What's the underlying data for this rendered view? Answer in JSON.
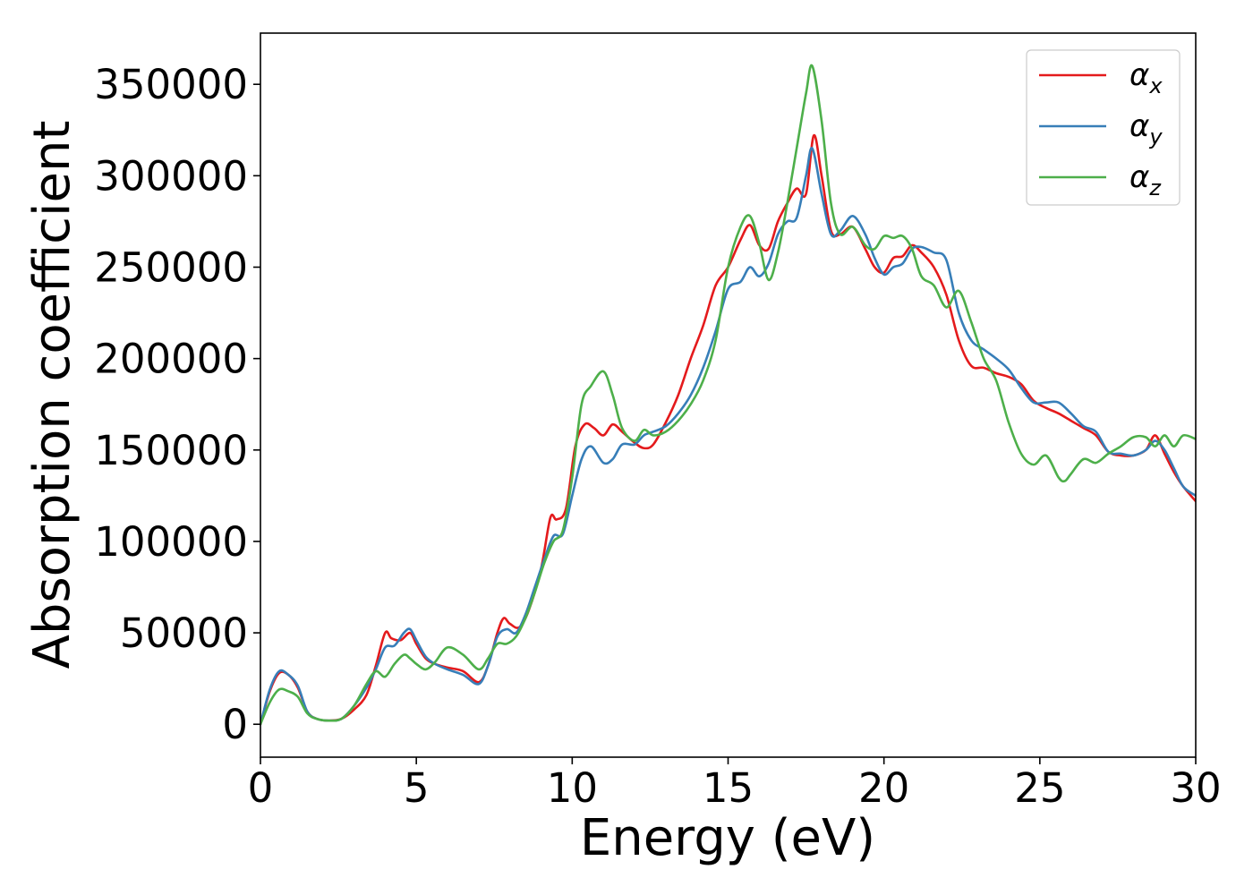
{
  "chart_data": {
    "type": "line",
    "title": "",
    "xlabel": "Energy (eV)",
    "ylabel": "Absorption coefficient",
    "xlim": [
      0,
      30
    ],
    "ylim": [
      -18000,
      378000
    ],
    "xticks": [
      0,
      5,
      10,
      15,
      20,
      25,
      30
    ],
    "yticks": [
      0,
      50000,
      100000,
      150000,
      200000,
      250000,
      300000,
      350000
    ],
    "grid": false,
    "legend_position": "top-right",
    "series": [
      {
        "name": "α_x",
        "legend_symbol": "α",
        "legend_sub": "x",
        "color": "#e41a1c",
        "x": [
          0,
          0.3,
          0.6,
          0.9,
          1.2,
          1.5,
          1.8,
          2.2,
          2.6,
          3.0,
          3.4,
          3.7,
          4.0,
          4.2,
          4.5,
          4.8,
          5.0,
          5.3,
          5.6,
          6.0,
          6.5,
          7.0,
          7.3,
          7.6,
          7.8,
          8.0,
          8.3,
          8.6,
          9.0,
          9.3,
          9.5,
          9.8,
          10.1,
          10.4,
          10.7,
          11.0,
          11.3,
          11.6,
          12.0,
          12.3,
          12.6,
          13.0,
          13.4,
          13.8,
          14.2,
          14.6,
          15.0,
          15.4,
          15.7,
          16.0,
          16.3,
          16.6,
          16.9,
          17.2,
          17.5,
          17.75,
          18.0,
          18.3,
          18.6,
          19.0,
          19.4,
          19.7,
          20.0,
          20.3,
          20.6,
          20.9,
          21.2,
          21.6,
          22.0,
          22.4,
          22.8,
          23.2,
          23.6,
          24.0,
          24.4,
          24.8,
          25.2,
          25.6,
          26.0,
          26.4,
          26.8,
          27.2,
          27.6,
          28.0,
          28.4,
          28.7,
          29.0,
          29.3,
          29.6,
          30.0
        ],
        "y": [
          0,
          18000,
          28000,
          27000,
          20000,
          7000,
          3000,
          2000,
          3000,
          8000,
          16000,
          32000,
          50000,
          47000,
          46000,
          50000,
          44000,
          36000,
          33000,
          31000,
          29000,
          23000,
          32000,
          50000,
          58000,
          55000,
          53000,
          62000,
          85000,
          113000,
          112000,
          118000,
          152000,
          164000,
          162000,
          158000,
          164000,
          160000,
          154000,
          151000,
          153000,
          165000,
          180000,
          200000,
          218000,
          240000,
          250000,
          265000,
          273000,
          262000,
          260000,
          275000,
          285000,
          293000,
          290000,
          322000,
          300000,
          270000,
          268000,
          272000,
          260000,
          250000,
          247000,
          255000,
          256000,
          262000,
          258000,
          250000,
          235000,
          210000,
          196000,
          195000,
          192000,
          190000,
          186000,
          177000,
          173000,
          170000,
          166000,
          162000,
          158000,
          149000,
          147000,
          147000,
          150000,
          158000,
          148000,
          138000,
          130000,
          122000
        ]
      },
      {
        "name": "α_y",
        "legend_symbol": "α",
        "legend_sub": "y",
        "color": "#377eb8",
        "x": [
          0,
          0.3,
          0.6,
          0.9,
          1.2,
          1.5,
          1.8,
          2.2,
          2.6,
          3.0,
          3.4,
          3.7,
          4.0,
          4.3,
          4.6,
          4.8,
          5.0,
          5.3,
          5.6,
          6.0,
          6.5,
          7.0,
          7.3,
          7.6,
          7.9,
          8.2,
          8.5,
          8.8,
          9.1,
          9.4,
          9.7,
          10.0,
          10.3,
          10.6,
          11.0,
          11.3,
          11.6,
          12.0,
          12.3,
          12.6,
          13.0,
          13.4,
          13.8,
          14.2,
          14.6,
          15.0,
          15.4,
          15.7,
          16.0,
          16.3,
          16.6,
          16.9,
          17.2,
          17.5,
          17.7,
          18.0,
          18.3,
          18.6,
          19.0,
          19.4,
          19.7,
          20.0,
          20.3,
          20.6,
          20.9,
          21.2,
          21.6,
          22.0,
          22.4,
          22.8,
          23.2,
          23.6,
          24.0,
          24.4,
          24.8,
          25.2,
          25.6,
          26.0,
          26.4,
          26.8,
          27.2,
          27.6,
          28.0,
          28.4,
          28.7,
          29.0,
          29.3,
          29.6,
          30.0
        ],
        "y": [
          0,
          19000,
          29000,
          27000,
          21000,
          7000,
          3000,
          2000,
          3000,
          10000,
          20000,
          30000,
          42000,
          43000,
          50000,
          52000,
          46000,
          37000,
          33000,
          30000,
          27000,
          22000,
          32000,
          48000,
          52000,
          50000,
          60000,
          75000,
          90000,
          103000,
          104000,
          125000,
          145000,
          152000,
          143000,
          145000,
          153000,
          153000,
          158000,
          160000,
          163000,
          170000,
          180000,
          195000,
          215000,
          238000,
          242000,
          250000,
          245000,
          252000,
          268000,
          275000,
          277000,
          300000,
          315000,
          290000,
          268000,
          270000,
          278000,
          268000,
          255000,
          246000,
          250000,
          252000,
          260000,
          261000,
          258000,
          254000,
          225000,
          210000,
          205000,
          200000,
          194000,
          184000,
          176000,
          176000,
          176000,
          170000,
          163000,
          160000,
          149000,
          148000,
          147000,
          150000,
          155000,
          150000,
          140000,
          130000,
          125000
        ]
      },
      {
        "name": "α_z",
        "legend_symbol": "α",
        "legend_sub": "z",
        "color": "#4daf4a",
        "x": [
          0,
          0.3,
          0.6,
          0.9,
          1.2,
          1.5,
          1.8,
          2.2,
          2.6,
          3.0,
          3.4,
          3.7,
          4.0,
          4.3,
          4.6,
          4.8,
          5.0,
          5.3,
          5.6,
          6.0,
          6.5,
          7.0,
          7.3,
          7.6,
          7.9,
          8.2,
          8.5,
          8.8,
          9.1,
          9.4,
          9.7,
          10.0,
          10.3,
          10.6,
          11.0,
          11.3,
          11.6,
          12.0,
          12.3,
          12.6,
          13.0,
          13.4,
          13.8,
          14.2,
          14.6,
          15.0,
          15.4,
          15.7,
          16.0,
          16.3,
          16.6,
          16.9,
          17.2,
          17.5,
          17.7,
          18.0,
          18.3,
          18.6,
          19.0,
          19.4,
          19.7,
          20.0,
          20.3,
          20.6,
          20.9,
          21.2,
          21.6,
          22.0,
          22.4,
          22.8,
          23.2,
          23.6,
          24.0,
          24.4,
          24.8,
          25.2,
          25.6,
          25.8,
          26.0,
          26.4,
          26.8,
          27.2,
          27.6,
          28.0,
          28.4,
          28.7,
          29.0,
          29.3,
          29.6,
          30.0
        ],
        "y": [
          0,
          12000,
          19000,
          18000,
          15000,
          6000,
          3000,
          2000,
          3000,
          10000,
          22000,
          29000,
          26000,
          33000,
          38000,
          36000,
          33000,
          30000,
          34000,
          42000,
          38000,
          30000,
          36000,
          44000,
          44000,
          48000,
          58000,
          72000,
          88000,
          100000,
          106000,
          135000,
          175000,
          185000,
          193000,
          180000,
          162000,
          155000,
          161000,
          158000,
          160000,
          166000,
          175000,
          188000,
          210000,
          250000,
          272000,
          278000,
          263000,
          243000,
          258000,
          285000,
          315000,
          345000,
          360000,
          330000,
          285000,
          268000,
          272000,
          262000,
          260000,
          267000,
          266000,
          267000,
          260000,
          245000,
          240000,
          228000,
          237000,
          220000,
          200000,
          188000,
          165000,
          148000,
          142000,
          147000,
          135000,
          133000,
          137000,
          145000,
          143000,
          148000,
          152000,
          157000,
          157000,
          152000,
          158000,
          152000,
          158000,
          156000
        ]
      }
    ]
  }
}
